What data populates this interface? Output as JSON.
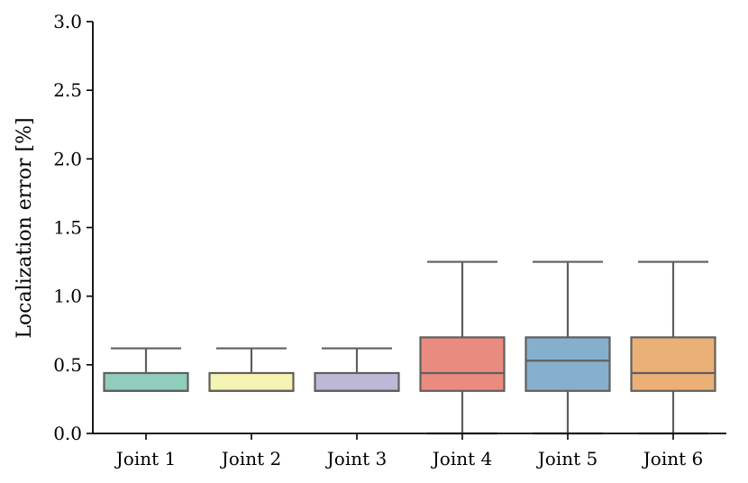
{
  "chart_data": {
    "type": "box",
    "title": "",
    "xlabel": "",
    "ylabel": "Localization error [%]",
    "ylim": [
      0,
      3.0
    ],
    "yticks": [
      "0.0",
      "0.5",
      "1.0",
      "1.5",
      "2.0",
      "2.5",
      "3.0"
    ],
    "grid": false,
    "categories": [
      "Joint 1",
      "Joint 2",
      "Joint 3",
      "Joint 4",
      "Joint 5",
      "Joint 6"
    ],
    "boxes": [
      {
        "category": "Joint 1",
        "whisker_low": 0.31,
        "q1": 0.31,
        "median": 0.31,
        "q3": 0.44,
        "whisker_high": 0.62,
        "color": "#8fcdbd"
      },
      {
        "category": "Joint 2",
        "whisker_low": 0.31,
        "q1": 0.31,
        "median": 0.31,
        "q3": 0.44,
        "whisker_high": 0.62,
        "color": "#f6f4b2"
      },
      {
        "category": "Joint 3",
        "whisker_low": 0.31,
        "q1": 0.31,
        "median": 0.31,
        "q3": 0.44,
        "whisker_high": 0.62,
        "color": "#bdb8d6"
      },
      {
        "category": "Joint 4",
        "whisker_low": 0.0,
        "q1": 0.31,
        "median": 0.44,
        "q3": 0.7,
        "whisker_high": 1.25,
        "color": "#ea8b80"
      },
      {
        "category": "Joint 5",
        "whisker_low": 0.0,
        "q1": 0.31,
        "median": 0.53,
        "q3": 0.7,
        "whisker_high": 1.25,
        "color": "#86afcd"
      },
      {
        "category": "Joint 6",
        "whisker_low": 0.0,
        "q1": 0.31,
        "median": 0.44,
        "q3": 0.7,
        "whisker_high": 1.25,
        "color": "#ebb076"
      }
    ]
  }
}
